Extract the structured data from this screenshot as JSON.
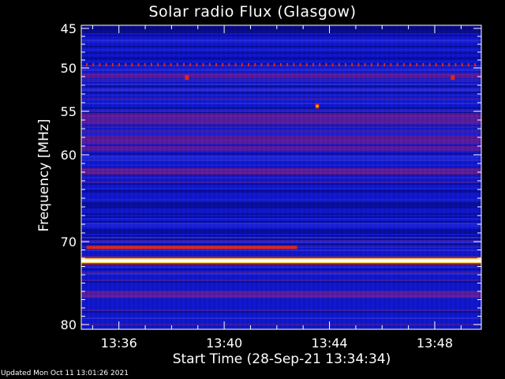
{
  "chart_data": {
    "type": "heatmap",
    "title": "Solar radio Flux (Glasgow)",
    "xlabel": "Start Time (28-Sep-21 13:34:34)",
    "ylabel": "Frequency [MHz]",
    "y_reversed": true,
    "ylim": [
      80,
      45
    ],
    "xlim_minutes": [
      0,
      15.2
    ],
    "x_ticks": [
      {
        "minute": 1.43,
        "label": "13:36"
      },
      {
        "minute": 5.43,
        "label": "13:40"
      },
      {
        "minute": 9.43,
        "label": "13:44"
      },
      {
        "minute": 13.43,
        "label": "13:48"
      }
    ],
    "y_ticks": [
      {
        "value": 45,
        "label": "45"
      },
      {
        "value": 50,
        "label": "50"
      },
      {
        "value": 55,
        "label": "55"
      },
      {
        "value": 60,
        "label": "60"
      },
      {
        "value": 70,
        "label": "70"
      },
      {
        "value": 80,
        "label": "80"
      }
    ],
    "features": [
      {
        "name": "strong-interference-line",
        "freq_mhz": 72.3,
        "start_min": 0,
        "end_min": 15.2,
        "intensity": "saturated"
      },
      {
        "name": "interference-line",
        "freq_mhz": 70.7,
        "start_min": 0.2,
        "end_min": 8.2,
        "intensity": "high"
      },
      {
        "name": "periodic-dots",
        "freq_mhz": 49.6,
        "start_min": 0,
        "end_min": 15.2,
        "intensity": "medium"
      },
      {
        "name": "spot",
        "freq_mhz": 54.4,
        "minute": 8.95,
        "intensity": "high"
      },
      {
        "name": "spot",
        "freq_mhz": 51.1,
        "minute": 4.0,
        "intensity": "medium"
      },
      {
        "name": "spot",
        "freq_mhz": 51.1,
        "minute": 14.1,
        "intensity": "medium"
      }
    ],
    "colors": {
      "background": "#000000",
      "low": "#1018d0",
      "mid": "#7a1e8e",
      "high": "#e02810",
      "saturated": "#ffffff"
    }
  },
  "footer": {
    "updated": "Updated Mon Oct 11 13:01:26 2021"
  }
}
